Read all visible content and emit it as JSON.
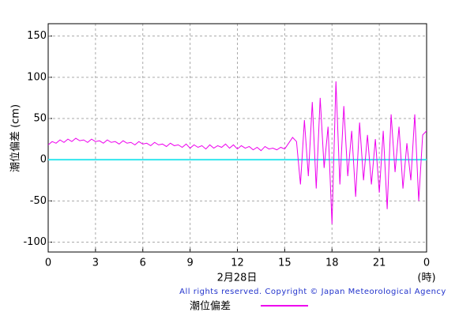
{
  "chart_data": {
    "type": "line",
    "ylabel": "潮位偏差 (cm)",
    "xlabel": "2月28日",
    "xunit": "(時)",
    "copyright": "All rights reserved. Copyright © Japan Meteorological Agency",
    "xlim": [
      0,
      24
    ],
    "xticks": [
      0,
      3,
      6,
      9,
      12,
      15,
      18,
      21,
      {
        "value": 24,
        "label": "0"
      }
    ],
    "ylim": [
      -112,
      165
    ],
    "yticks": [
      150,
      100,
      50,
      0,
      -50,
      -100
    ],
    "grid": true,
    "zero_line_color": "#33e6ee",
    "series": [
      {
        "name": "潮位偏差",
        "color": "#ee00ee",
        "x": [
          0,
          0.25,
          0.5,
          0.75,
          1,
          1.25,
          1.5,
          1.75,
          2,
          2.25,
          2.5,
          2.75,
          3,
          3.25,
          3.5,
          3.75,
          4,
          4.25,
          4.5,
          4.75,
          5,
          5.25,
          5.5,
          5.75,
          6,
          6.25,
          6.5,
          6.75,
          7,
          7.25,
          7.5,
          7.75,
          8,
          8.25,
          8.5,
          8.75,
          9,
          9.25,
          9.5,
          9.75,
          10,
          10.25,
          10.5,
          10.75,
          11,
          11.25,
          11.5,
          11.75,
          12,
          12.25,
          12.5,
          12.75,
          13,
          13.25,
          13.5,
          13.75,
          14,
          14.25,
          14.5,
          14.75,
          15,
          15.25,
          15.5,
          15.75,
          16,
          16.25,
          16.5,
          16.75,
          17,
          17.25,
          17.5,
          17.75,
          18,
          18.25,
          18.5,
          18.75,
          19,
          19.25,
          19.5,
          19.75,
          20,
          20.25,
          20.5,
          20.75,
          21,
          21.25,
          21.5,
          21.75,
          22,
          22.25,
          22.5,
          22.75,
          23,
          23.25,
          23.5,
          23.75,
          24
        ],
        "values": [
          18,
          22,
          20,
          24,
          21,
          25,
          22,
          26,
          23,
          24,
          21,
          25,
          22,
          23,
          20,
          24,
          21,
          22,
          19,
          23,
          20,
          21,
          18,
          22,
          19,
          20,
          17,
          21,
          18,
          19,
          16,
          20,
          17,
          18,
          15,
          19,
          14,
          18,
          15,
          17,
          13,
          18,
          14,
          17,
          15,
          19,
          14,
          18,
          13,
          17,
          14,
          16,
          12,
          15,
          11,
          16,
          13,
          14,
          12,
          15,
          13,
          20,
          27,
          22,
          -30,
          48,
          -20,
          70,
          -35,
          75,
          -10,
          40,
          -78,
          95,
          -30,
          65,
          -20,
          35,
          -45,
          45,
          -25,
          30,
          -30,
          25,
          -40,
          35,
          -60,
          55,
          -15,
          40,
          -35,
          20,
          -25,
          55,
          -50,
          30,
          35
        ]
      }
    ]
  }
}
